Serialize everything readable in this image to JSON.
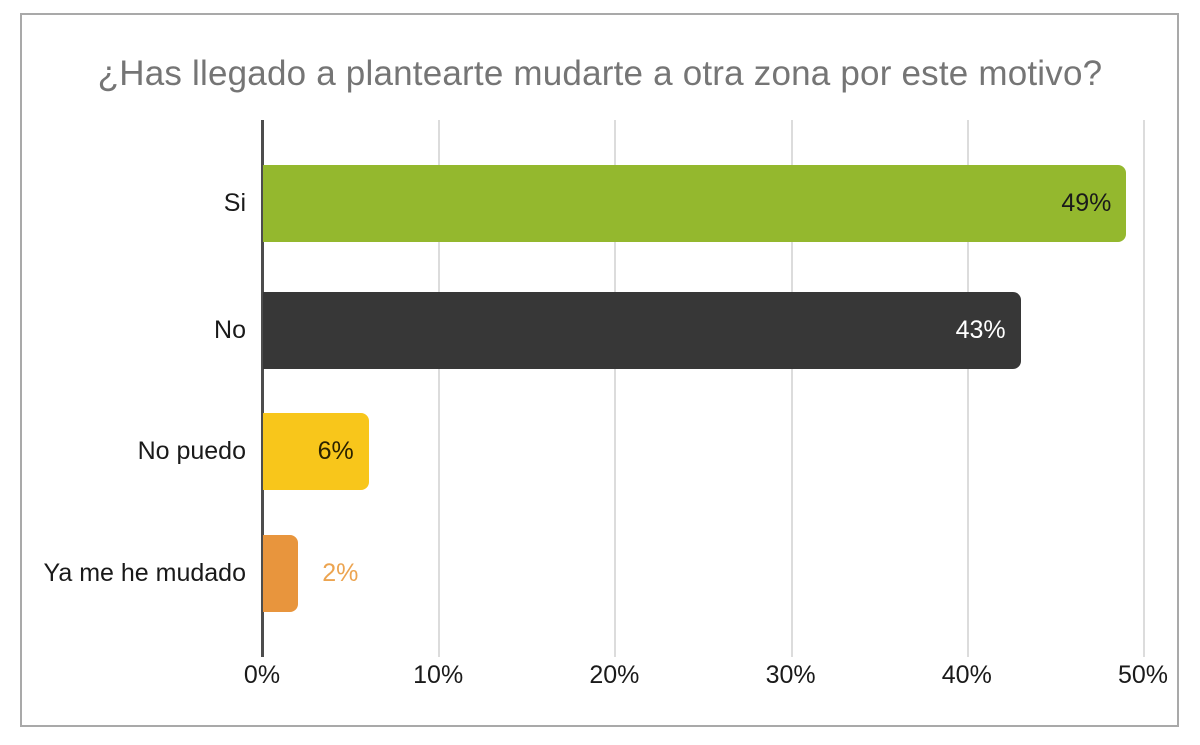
{
  "chart_data": {
    "type": "bar",
    "orientation": "horizontal",
    "title": "¿Has llegado a plantearte mudarte a otra zona por este motivo?",
    "categories": [
      "Si",
      "No",
      "No puedo",
      "Ya me he mudado"
    ],
    "values": [
      49,
      43,
      6,
      2
    ],
    "value_labels": [
      "49%",
      "43%",
      "6%",
      "2%"
    ],
    "bar_colors": [
      "#94b82e",
      "#373737",
      "#f8c61b",
      "#e8953d"
    ],
    "value_label_colors": [
      "#1a1a1a",
      "#ffffff",
      "#2b2200",
      "#eca450"
    ],
    "value_label_inside": [
      true,
      true,
      true,
      false
    ],
    "x_tick_labels": [
      "0%",
      "10%",
      "20%",
      "30%",
      "40%",
      "50%"
    ],
    "x_tick_values": [
      0,
      10,
      20,
      30,
      40,
      50
    ],
    "xlim": [
      0,
      50
    ],
    "xlabel": "",
    "ylabel": "",
    "grid": true,
    "legend": "none",
    "colors": {
      "title_text": "#757575",
      "frame_border": "#a9a9a9",
      "gridline": "#dcdcdc",
      "axis_line": "#4d4d4d",
      "tick_text": "#1a1a1a",
      "background": "#ffffff"
    }
  }
}
